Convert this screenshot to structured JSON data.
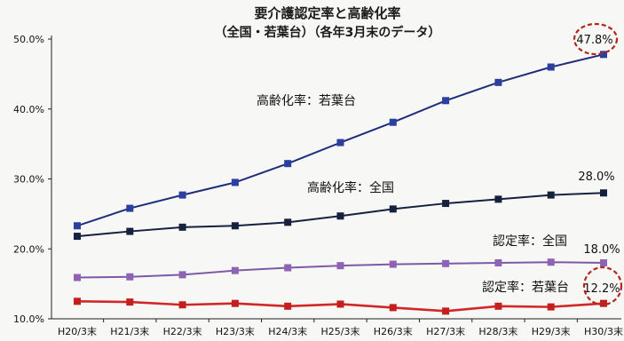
{
  "chart_data": {
    "type": "line",
    "title": "要介護認定率と高齢化率",
    "subtitle": "（全国・若葉台）（各年3月末のデータ）",
    "categories": [
      "H20/3末",
      "H21/3末",
      "H22/3末",
      "H23/3末",
      "H24/3末",
      "H25/3末",
      "H26/3末",
      "H27/3末",
      "H28/3末",
      "H29/3末",
      "H30/3末"
    ],
    "ylim": [
      10,
      50
    ],
    "yticks": [
      10,
      20,
      30,
      40,
      50
    ],
    "ytick_labels": [
      "10.0%",
      "20.0%",
      "30.0%",
      "40.0%",
      "50.0%"
    ],
    "grid": false,
    "series": [
      {
        "name": "高齢化率：若葉台",
        "color": "#1f2e7a",
        "marker_color": "#2b3f9e",
        "values": [
          23.3,
          25.8,
          27.7,
          29.5,
          32.2,
          35.2,
          38.1,
          41.2,
          43.8,
          46.0,
          47.8
        ],
        "end_label": "47.8%",
        "end_highlight": true
      },
      {
        "name": "高齢化率：全国",
        "color": "#15213f",
        "marker_color": "#15213f",
        "values": [
          21.8,
          22.5,
          23.1,
          23.3,
          23.8,
          24.7,
          25.7,
          26.5,
          27.1,
          27.7,
          28.0
        ],
        "end_label": "28.0%",
        "end_highlight": false
      },
      {
        "name": "認定率：全国",
        "color": "#7d5aa6",
        "marker_color": "#8e63b5",
        "values": [
          15.9,
          16.0,
          16.3,
          16.9,
          17.3,
          17.6,
          17.8,
          17.9,
          18.0,
          18.1,
          18.0
        ],
        "end_label": "18.0%",
        "end_highlight": false
      },
      {
        "name": "認定率：若葉台",
        "color": "#d02828",
        "marker_color": "#c41f1f",
        "values": [
          12.5,
          12.4,
          12.0,
          12.2,
          11.8,
          12.1,
          11.6,
          11.1,
          11.8,
          11.7,
          12.2
        ],
        "end_label": "12.2%",
        "end_highlight": true
      }
    ]
  }
}
